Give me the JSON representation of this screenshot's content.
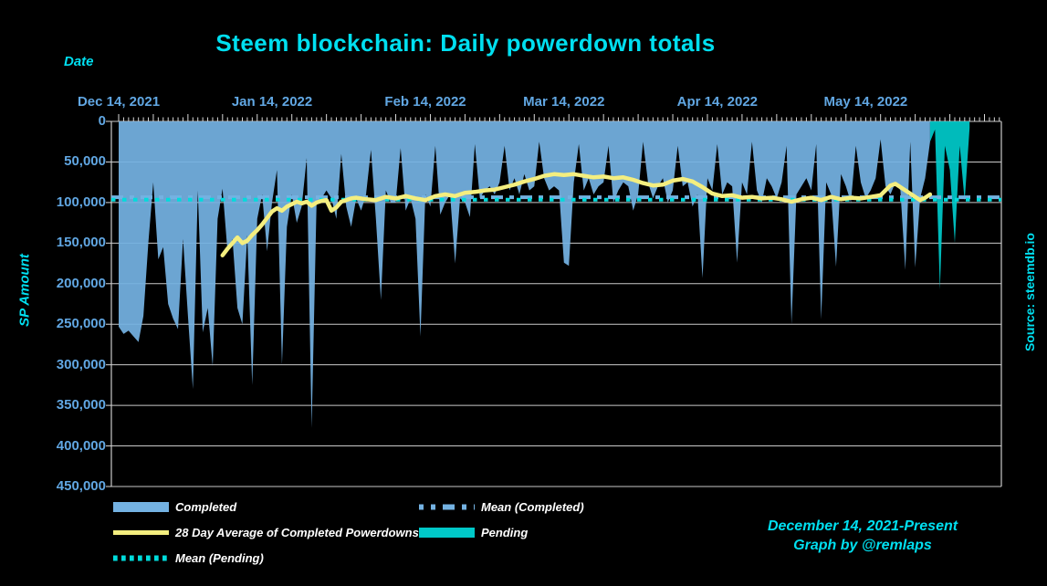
{
  "title": "Steem blockchain: Daily powerdown totals",
  "axis": {
    "x_title": "Date",
    "y_title": "SP Amount",
    "x_tick_labels": [
      "Dec 14, 2021",
      "Jan 14, 2022",
      "Feb 14, 2022",
      "Mar 14, 2022",
      "Apr 14, 2022",
      "May 14, 2022"
    ],
    "y_tick_labels": [
      "0",
      "50,000",
      "100,000",
      "150,000",
      "200,000",
      "250,000",
      "300,000",
      "350,000",
      "400,000",
      "450,000"
    ]
  },
  "legend": {
    "items": [
      {
        "label": "Completed",
        "swatch": "area",
        "color": "#74b2e2"
      },
      {
        "label": "Mean (Completed)",
        "swatch": "dashdot-line",
        "color": "#74b2e2"
      },
      {
        "label": "28 Day Average of Completed Powerdowns",
        "swatch": "solid-line",
        "color": "#f4ee7f"
      },
      {
        "label": "Pending",
        "swatch": "area",
        "color": "#00c9c9"
      },
      {
        "label": "Mean (Pending)",
        "swatch": "dotted-line",
        "color": "#00dcdc"
      }
    ]
  },
  "footer": {
    "line1": "December 14, 2021-Present",
    "line2": "Graph by @remlaps"
  },
  "source": "Source: steemdb.io",
  "colors": {
    "background": "#000000",
    "completed": "#74b2e2",
    "pending": "#00c9c9",
    "average_line": "#f4ee7f",
    "mean_completed_line": "#74b2e2",
    "mean_pending_line": "#00dcdc",
    "grid": "#c9c9c9",
    "tick_label": "#61a7e3",
    "accent_cyan": "#00dff0",
    "legend_text": "#ffffff"
  },
  "chart_data": {
    "type": "area",
    "title": "Steem blockchain: Daily powerdown totals",
    "xlabel": "Date",
    "ylabel": "SP Amount",
    "x_unit": "days since Dec 14, 2021",
    "ylim": [
      0,
      450000
    ],
    "y_axis_inverted": true,
    "grid": "horizontal-only",
    "x_tick_days": [
      0,
      31,
      62,
      90,
      121,
      151
    ],
    "x_range_days": [
      -1.5,
      178.4
    ],
    "series": [
      {
        "name": "Completed",
        "type": "area",
        "color": "#74b2e2",
        "start_day": 0,
        "values": [
          253000,
          262000,
          258000,
          265000,
          272000,
          240000,
          150000,
          75000,
          170000,
          155000,
          225000,
          243000,
          256000,
          145000,
          240000,
          330000,
          85000,
          260000,
          230000,
          302000,
          120000,
          83000,
          160000,
          145000,
          230000,
          250000,
          140000,
          325000,
          120000,
          90000,
          160000,
          100000,
          60000,
          300000,
          130000,
          90000,
          125000,
          105000,
          45000,
          378000,
          100000,
          95000,
          85000,
          95000,
          120000,
          40000,
          105000,
          130000,
          95000,
          110000,
          90000,
          35000,
          120000,
          220000,
          85000,
          100000,
          100000,
          33000,
          110000,
          95000,
          120000,
          265000,
          90000,
          105000,
          30000,
          115000,
          100000,
          90000,
          175000,
          95000,
          100000,
          118000,
          28000,
          95000,
          85000,
          80000,
          90000,
          75000,
          30000,
          85000,
          70000,
          90000,
          65000,
          85000,
          80000,
          25000,
          70000,
          85000,
          80000,
          85000,
          174000,
          178000,
          75000,
          28000,
          85000,
          70000,
          90000,
          80000,
          75000,
          30000,
          100000,
          85000,
          75000,
          80000,
          110000,
          90000,
          25000,
          75000,
          95000,
          80000,
          70000,
          100000,
          85000,
          30000,
          80000,
          75000,
          105000,
          90000,
          193000,
          70000,
          85000,
          28000,
          90000,
          75000,
          80000,
          174000,
          75000,
          90000,
          25000,
          85000,
          100000,
          70000,
          80000,
          95000,
          75000,
          30000,
          250000,
          90000,
          80000,
          70000,
          85000,
          28000,
          244000,
          75000,
          90000,
          179000,
          65000,
          80000,
          100000,
          30000,
          75000,
          95000,
          85000,
          70000,
          22000,
          80000,
          90000,
          75000,
          85000,
          183000,
          25000,
          180000,
          95000,
          70000,
          25000
        ]
      },
      {
        "name": "Pending",
        "type": "area",
        "color": "#00c9c9",
        "start_day": 164,
        "values": [
          25000,
          10000,
          207000,
          30000,
          60000,
          150000,
          30000,
          98000,
          8000
        ]
      },
      {
        "name": "28 Day Average of Completed Powerdowns",
        "type": "line",
        "color": "#f4ee7f",
        "points": [
          [
            21,
            165000
          ],
          [
            22,
            157000
          ],
          [
            23,
            150000
          ],
          [
            24,
            143000
          ],
          [
            25,
            150000
          ],
          [
            26,
            147000
          ],
          [
            27,
            140000
          ],
          [
            28,
            134000
          ],
          [
            29,
            127000
          ],
          [
            30,
            119000
          ],
          [
            31,
            111000
          ],
          [
            32,
            107000
          ],
          [
            33,
            110000
          ],
          [
            34,
            105000
          ],
          [
            35,
            102000
          ],
          [
            36,
            99000
          ],
          [
            37,
            101000
          ],
          [
            38,
            99000
          ],
          [
            39,
            104000
          ],
          [
            40,
            100000
          ],
          [
            41,
            98000
          ],
          [
            42,
            97000
          ],
          [
            43,
            110000
          ],
          [
            44,
            106000
          ],
          [
            45,
            99000
          ],
          [
            46,
            97000
          ],
          [
            47,
            95000
          ],
          [
            48,
            94000
          ],
          [
            50,
            96000
          ],
          [
            52,
            97000
          ],
          [
            54,
            93000
          ],
          [
            56,
            95000
          ],
          [
            58,
            92000
          ],
          [
            60,
            95000
          ],
          [
            62,
            97000
          ],
          [
            64,
            92000
          ],
          [
            66,
            90000
          ],
          [
            68,
            92000
          ],
          [
            70,
            88000
          ],
          [
            72,
            87000
          ],
          [
            74,
            85000
          ],
          [
            76,
            84000
          ],
          [
            78,
            81000
          ],
          [
            80,
            78000
          ],
          [
            82,
            74000
          ],
          [
            84,
            71000
          ],
          [
            86,
            67000
          ],
          [
            88,
            65000
          ],
          [
            90,
            66000
          ],
          [
            92,
            65000
          ],
          [
            94,
            67000
          ],
          [
            96,
            69000
          ],
          [
            98,
            68000
          ],
          [
            100,
            70000
          ],
          [
            102,
            69000
          ],
          [
            104,
            72000
          ],
          [
            106,
            76000
          ],
          [
            108,
            79000
          ],
          [
            110,
            78000
          ],
          [
            112,
            73000
          ],
          [
            114,
            71000
          ],
          [
            116,
            74000
          ],
          [
            118,
            81000
          ],
          [
            120,
            89000
          ],
          [
            122,
            92000
          ],
          [
            124,
            91000
          ],
          [
            126,
            94000
          ],
          [
            128,
            93000
          ],
          [
            130,
            95000
          ],
          [
            132,
            94000
          ],
          [
            134,
            96000
          ],
          [
            136,
            99000
          ],
          [
            138,
            96000
          ],
          [
            140,
            94000
          ],
          [
            142,
            97000
          ],
          [
            144,
            93000
          ],
          [
            146,
            96000
          ],
          [
            148,
            94000
          ],
          [
            150,
            95000
          ],
          [
            152,
            93000
          ],
          [
            154,
            91000
          ],
          [
            156,
            79000
          ],
          [
            157,
            77000
          ],
          [
            158,
            81000
          ],
          [
            160,
            89000
          ],
          [
            162,
            97000
          ],
          [
            163,
            94000
          ],
          [
            164,
            90000
          ]
        ]
      },
      {
        "name": "Mean (Completed)",
        "type": "hline",
        "style": "dashdot",
        "color": "#74b2e2",
        "value": 93500
      },
      {
        "name": "Mean (Pending)",
        "type": "hline",
        "style": "dotted",
        "color": "#00dcdc",
        "value": 96500
      }
    ]
  }
}
